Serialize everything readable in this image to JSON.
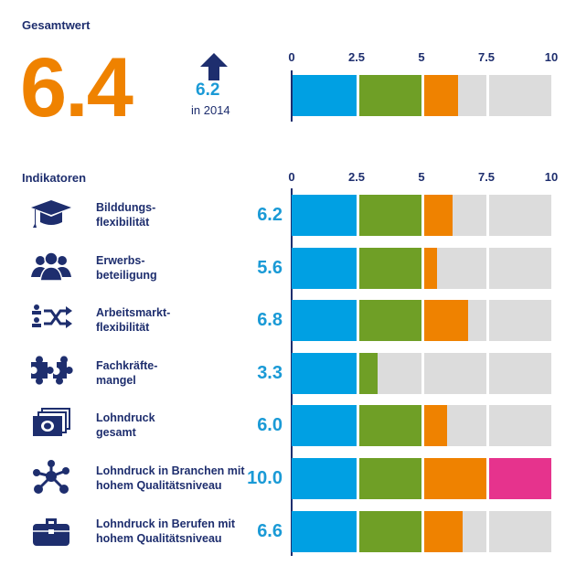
{
  "gesamt": {
    "title": "Gesamtwert",
    "value": "6.4",
    "previous_value": "6.2",
    "previous_label": "in 2014",
    "trend_icon": "arrow-up-icon"
  },
  "indikatoren_title": "Indikatoren",
  "colors": {
    "blue": "#00a0e3",
    "green": "#6f9f26",
    "orange": "#ef8200",
    "pink": "#e6338d",
    "gray": "#dcdcdc",
    "navy": "#1e2e6e"
  },
  "chart_data": {
    "type": "bar",
    "orientation": "horizontal",
    "xlim": [
      0,
      10
    ],
    "ticks": [
      "0",
      "2.5",
      "5",
      "7.5",
      "10"
    ],
    "segment_breaks": [
      2.5,
      5,
      7.5,
      10
    ],
    "total": {
      "value": 6.4
    },
    "categories": [
      {
        "label": "Bilddungs-\nflexibilität",
        "value": 6.2,
        "display": "6.2",
        "icon": "graduation-cap-icon"
      },
      {
        "label": "Erwerbs-\nbeteiligung",
        "value": 5.6,
        "display": "5.6",
        "icon": "people-icon"
      },
      {
        "label": "Arbeitsmarkt-\nflexibilität",
        "value": 6.8,
        "display": "6.8",
        "icon": "shuffle-people-icon"
      },
      {
        "label": "Fachkräfte-\nmangel",
        "value": 3.3,
        "display": "3.3",
        "icon": "puzzle-icon"
      },
      {
        "label": "Lohndruck\ngesamt",
        "value": 6.0,
        "display": "6.0",
        "icon": "money-icon"
      },
      {
        "label": "Lohndruck in Branchen mit\nhohem Qualitätsniveau",
        "value": 10.0,
        "display": "10.0",
        "icon": "network-icon"
      },
      {
        "label": "Lohndruck in Berufen mit\nhohem Qualitätsniveau",
        "value": 6.6,
        "display": "6.6",
        "icon": "briefcase-icon"
      }
    ]
  }
}
